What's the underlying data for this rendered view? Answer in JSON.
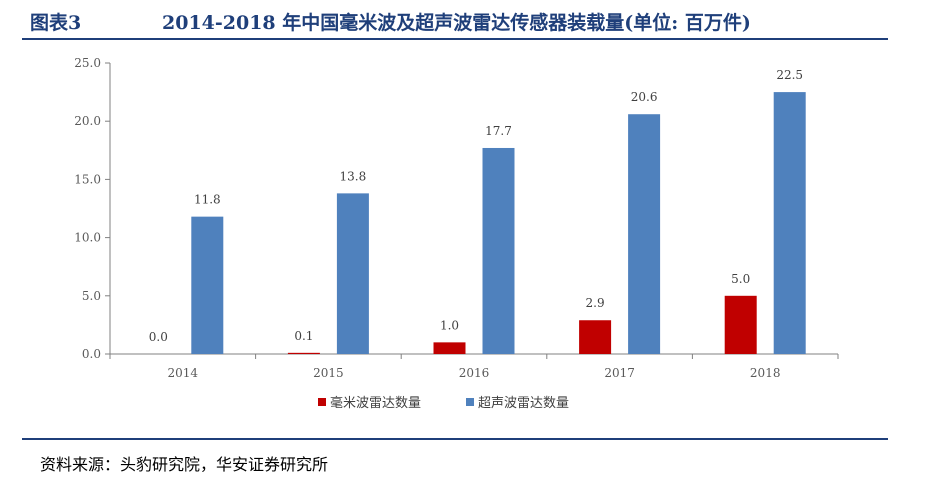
{
  "header": {
    "figure_label": "图表3",
    "title": "2014-2018 年中国毫米波及超声波雷达传感器装载量(单位: 百万件)"
  },
  "source": "资料来源：头豹研究院，华安证券研究所",
  "chart_data": {
    "type": "bar",
    "title": "2014-2018 年中国毫米波及超声波雷达传感器装载量(单位: 百万件)",
    "categories": [
      "2014",
      "2015",
      "2016",
      "2017",
      "2018"
    ],
    "series": [
      {
        "name": "毫米波雷达数量",
        "values": [
          0.0,
          0.1,
          1.0,
          2.9,
          5.0
        ],
        "labels": [
          "0.0",
          "0.1",
          "1.0",
          "2.9",
          "5.0"
        ],
        "color": "#c00000"
      },
      {
        "name": "超声波雷达数量",
        "values": [
          11.8,
          13.8,
          17.7,
          20.6,
          22.5
        ],
        "labels": [
          "11.8",
          "13.8",
          "17.7",
          "20.6",
          "22.5"
        ],
        "color": "#4f81bd"
      }
    ],
    "yticks": [
      "0.0",
      "5.0",
      "10.0",
      "15.0",
      "20.0",
      "25.0"
    ],
    "ylim": [
      0,
      25
    ],
    "xlabel": "",
    "ylabel": "",
    "grid": false,
    "legend_position": "bottom-center"
  }
}
